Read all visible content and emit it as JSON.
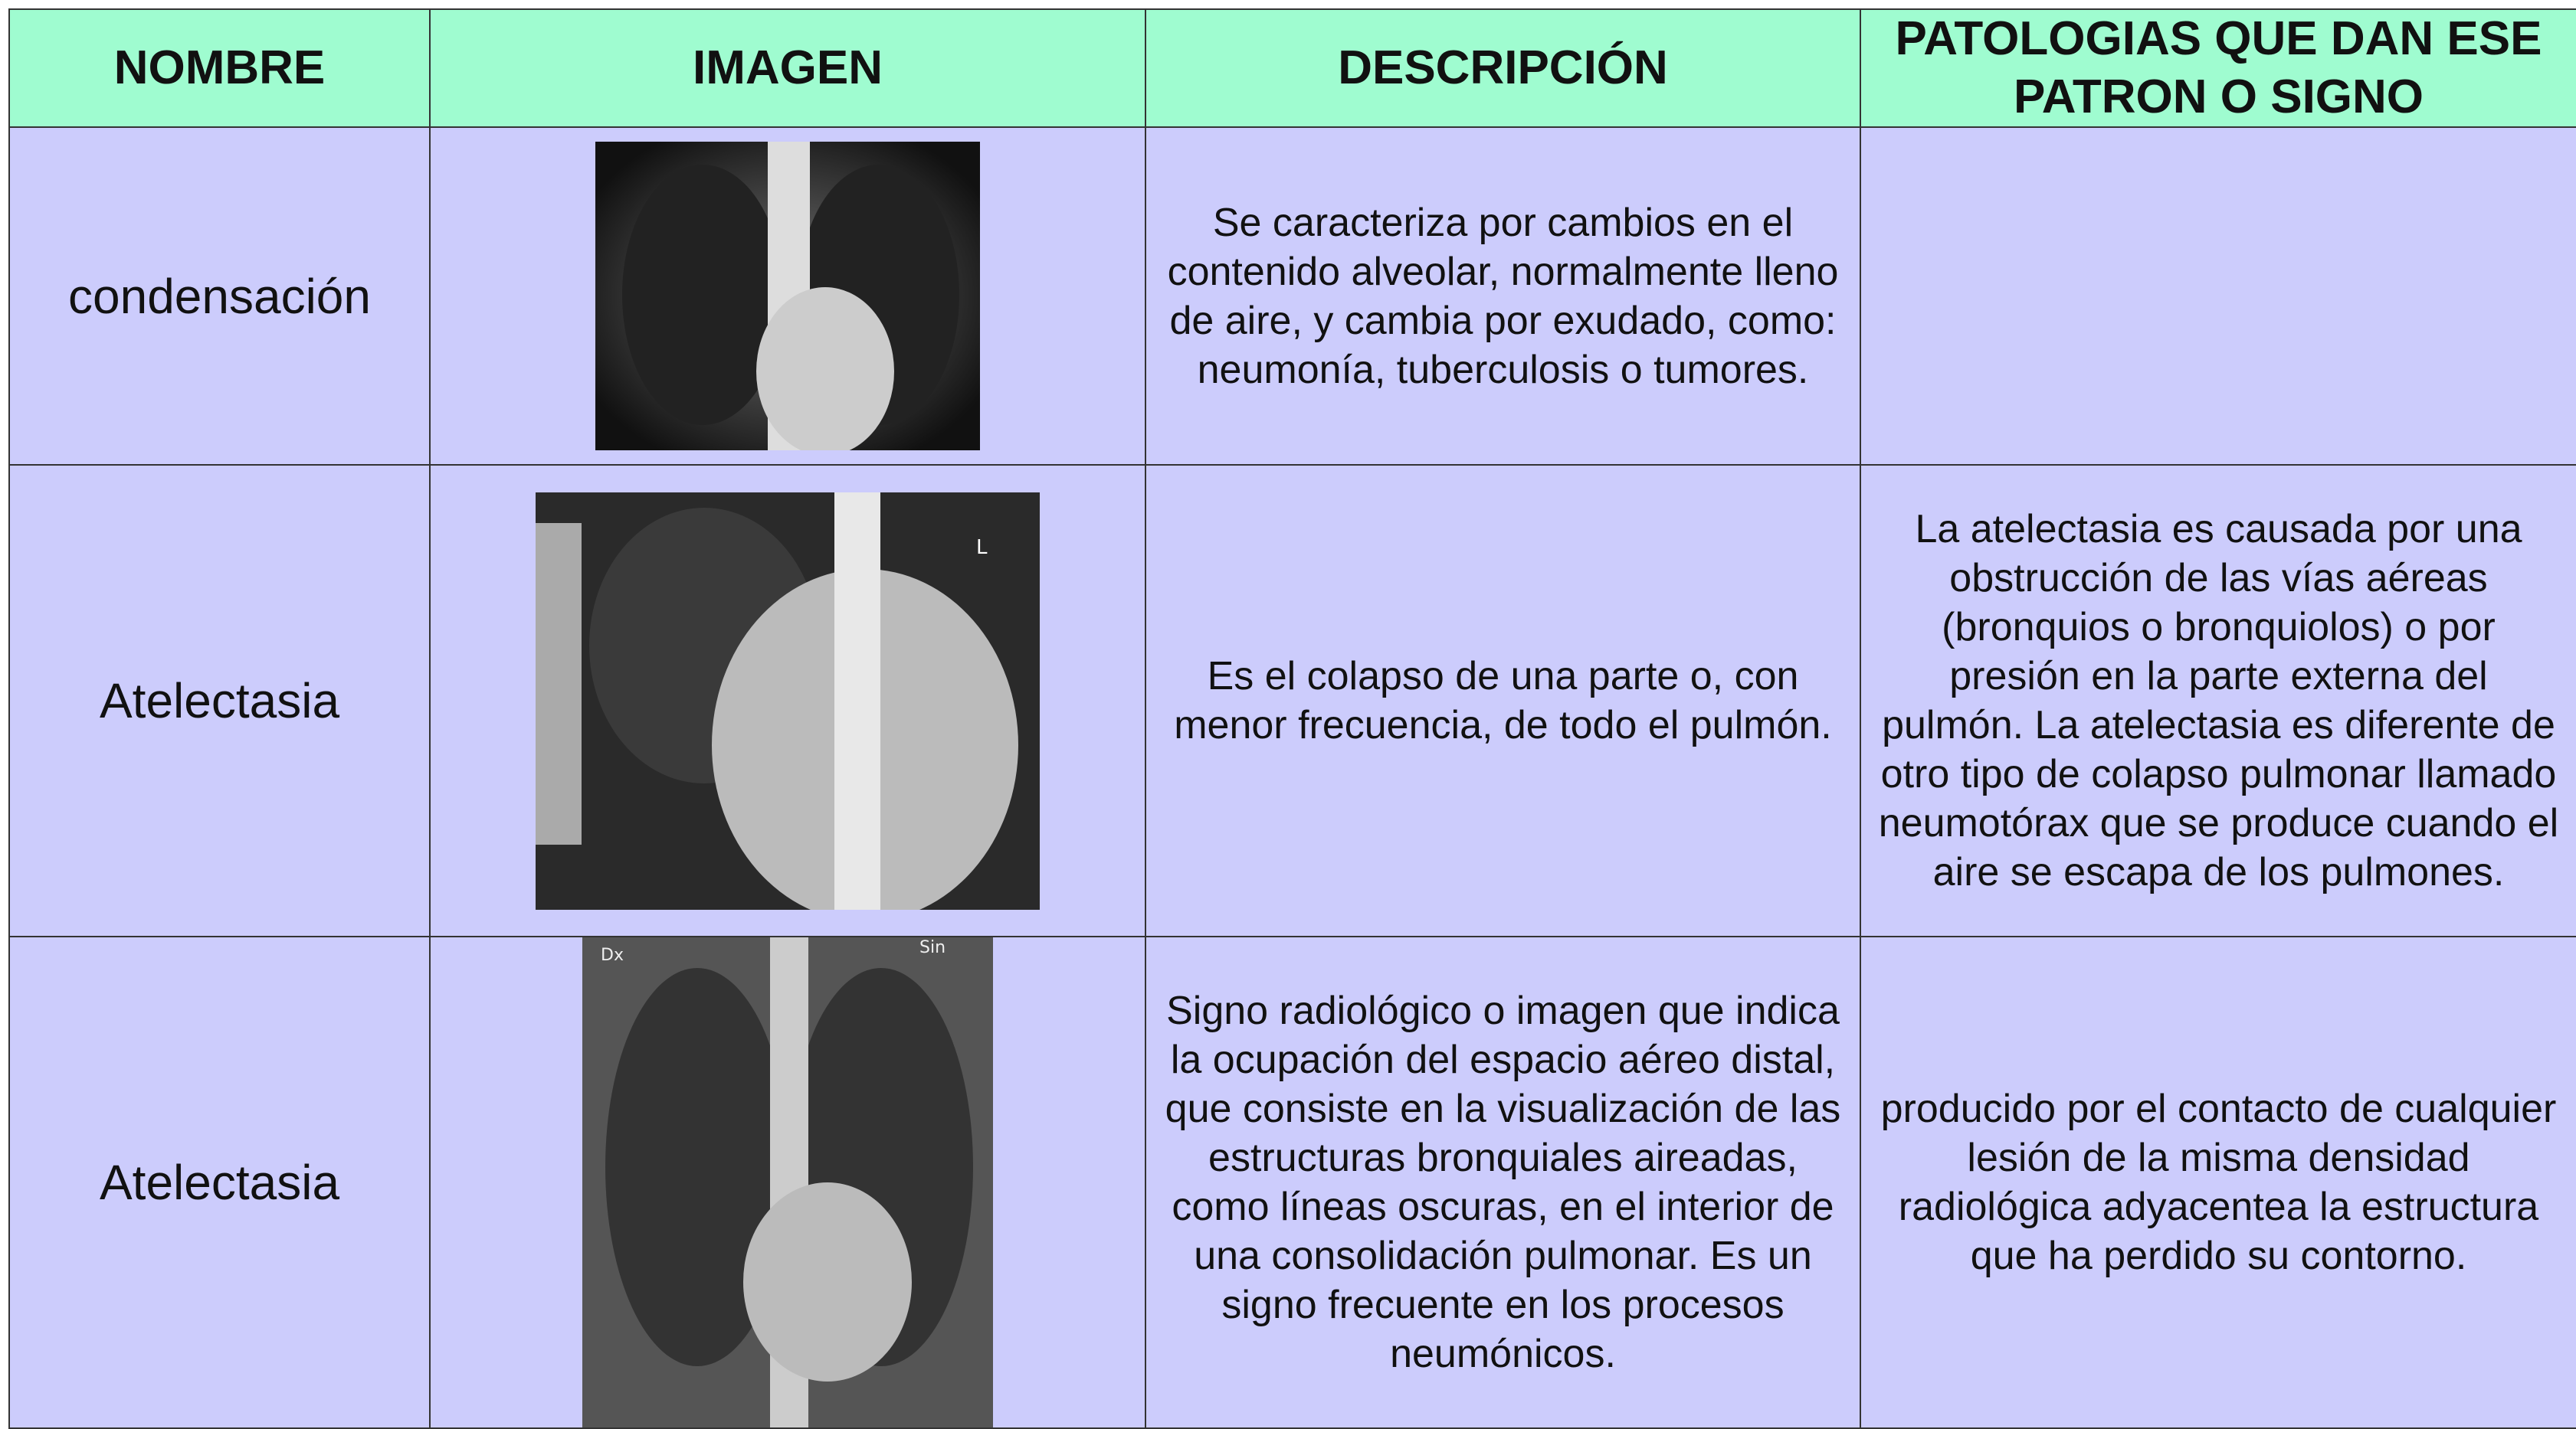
{
  "table": {
    "headers": [
      "NOMBRE",
      "IMAGEN",
      "DESCRIPCIÓN",
      "PATOLOGIAS QUE DAN ESE PATRON O SIGNO"
    ],
    "rows": [
      {
        "name": "condensación",
        "description": "Se caracteriza por cambios en el contenido alveolar, normalmente lleno de aire, y cambia por exudado, como: neumonía, tuberculosis o tumores."
      },
      {
        "name": "Atelectasia",
        "description": "Es el colapso de una parte o, con menor frecuencia, de todo el pulmón.",
        "pathologies": "La atelectasia es causada por una obstrucción de las vías aéreas (bronquios o bronquiolos) o por presión en la parte externa del pulmón. La atelectasia es diferente de otro tipo de colapso pulmonar llamado neumotórax que se produce cuando el aire se escapa de los pulmones.",
        "image_labels": [
          "L"
        ]
      },
      {
        "name": "Atelectasia",
        "description": "Signo radiológico o imagen que indica la ocupación del espacio aéreo distal, que consiste en la visualización de las estructuras bronquiales aireadas, como líneas oscuras, en el interior de una consolidación pulmonar. Es un signo frecuente en los procesos neumónicos.",
        "pathologies": "producido por el contacto de cualquier lesión de la misma densidad radiológica adyacentea la estructura que ha perdido su contorno.",
        "image_labels": [
          "Dx",
          "Sin"
        ]
      }
    ]
  }
}
